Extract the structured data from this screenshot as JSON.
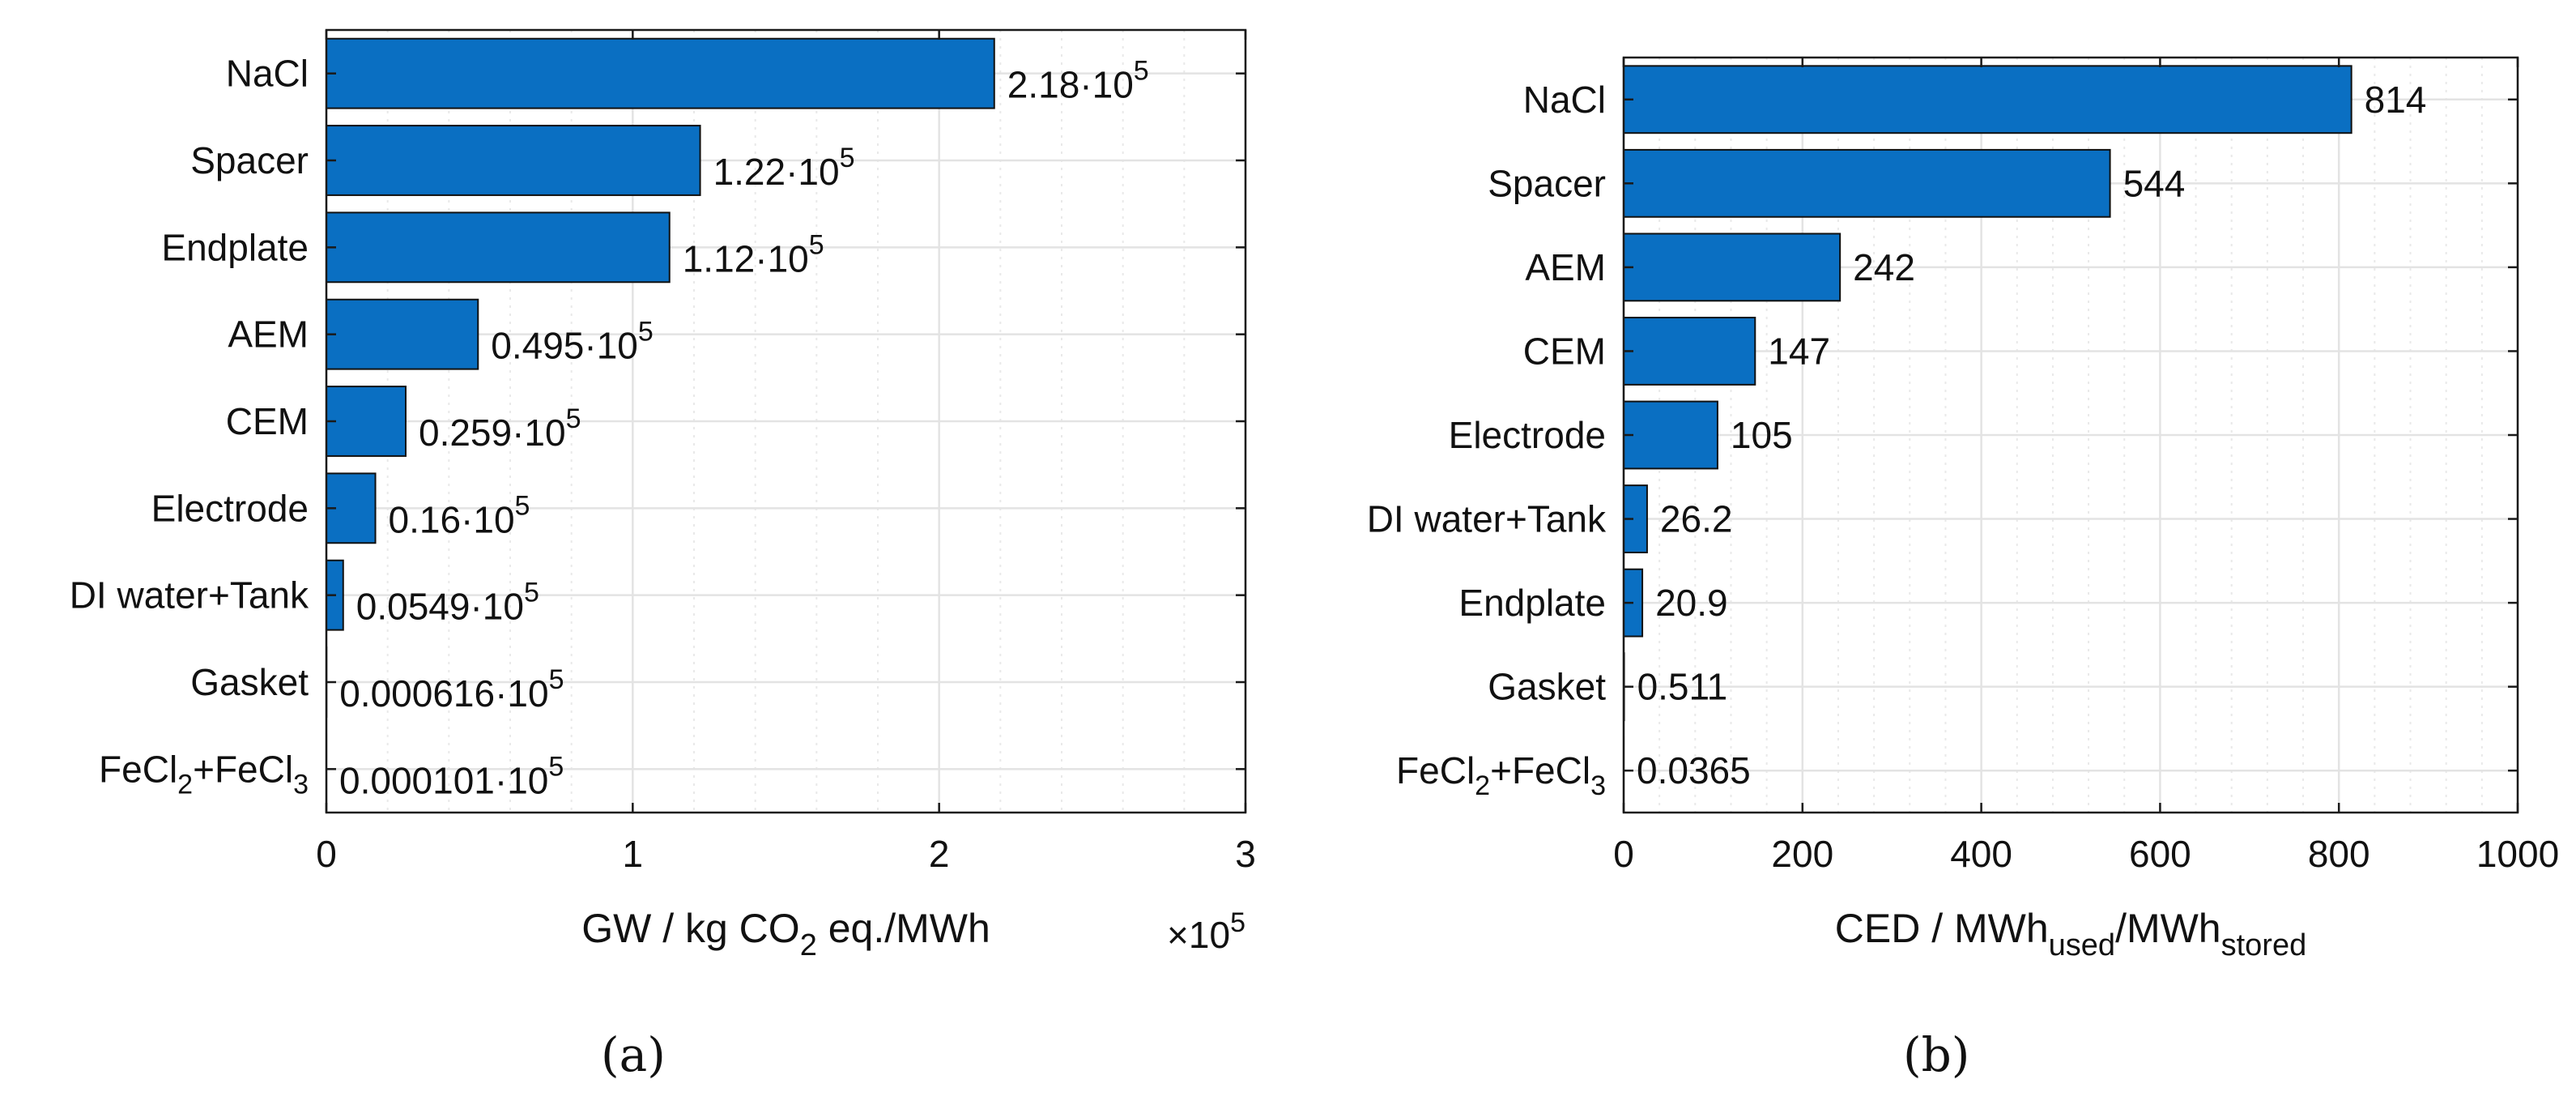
{
  "colors": {
    "bar": "#0a6fc2",
    "bar_edge": "#111111",
    "grid_major": "#e3e3e3",
    "grid_minor": "#e9e9e9",
    "axis": "#1a1a1a",
    "text": "#111111"
  },
  "chart_data": [
    {
      "type": "bar",
      "orientation": "horizontal",
      "panel_label": "(a)",
      "categories": [
        "NaCl",
        "Spacer",
        "Endplate",
        "AEM",
        "CEM",
        "Electrode",
        "DI water+Tank",
        "Gasket",
        "FeCl2+FeCl3"
      ],
      "values": [
        218000,
        122000,
        112000,
        49500,
        25900,
        16000,
        5490,
        61.6,
        10.1
      ],
      "label_mantissas": [
        "2.18",
        "1.22",
        "1.12",
        "0.495",
        "0.259",
        "0.16",
        "0.0549",
        "0.000616",
        "0.000101"
      ],
      "label_suffix": "·10",
      "label_exponent": "5",
      "xlabel_parts": [
        "GW / kg CO",
        "2",
        " eq./MWh"
      ],
      "xlim": [
        0,
        300000
      ],
      "xticks": [
        0,
        100000,
        200000,
        300000
      ],
      "xtick_labels": [
        "0",
        "1",
        "2",
        "3"
      ],
      "x_multiplier": "×10",
      "x_multiplier_exp": "5",
      "grid": true
    },
    {
      "type": "bar",
      "orientation": "horizontal",
      "panel_label": "(b)",
      "categories": [
        "NaCl",
        "Spacer",
        "AEM",
        "CEM",
        "Electrode",
        "DI water+Tank",
        "Endplate",
        "Gasket",
        "FeCl2+FeCl3"
      ],
      "values": [
        814,
        544,
        242,
        147,
        105,
        26.2,
        20.9,
        0.511,
        0.0365
      ],
      "value_labels": [
        "814",
        "544",
        "242",
        "147",
        "105",
        "26.2",
        "20.9",
        "0.511",
        "0.0365"
      ],
      "xlabel_parts": [
        "CED / MWh",
        "used",
        "/MWh",
        "stored"
      ],
      "xlim": [
        0,
        1000
      ],
      "xticks": [
        0,
        200,
        400,
        600,
        800,
        1000
      ],
      "xtick_labels": [
        "0",
        "200",
        "400",
        "600",
        "800",
        "1000"
      ],
      "grid": true
    }
  ]
}
